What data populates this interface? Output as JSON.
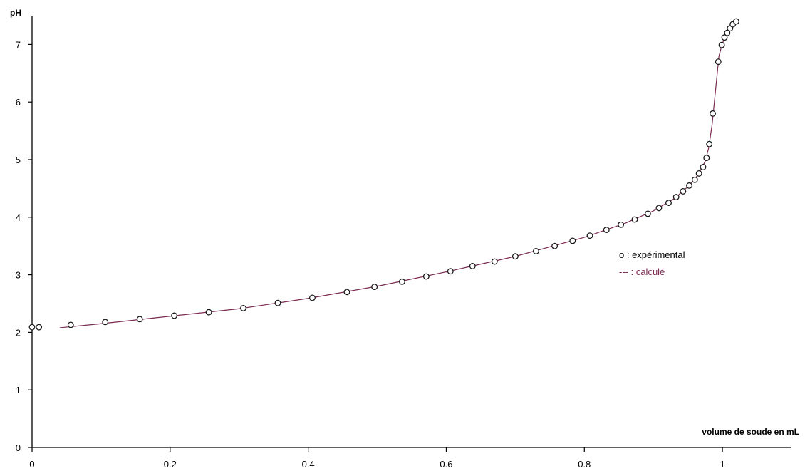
{
  "chart_data": {
    "type": "scatter",
    "xlabel": "volume de soude en mL",
    "ylabel": "pH",
    "xlim": [
      0,
      1.1
    ],
    "ylim": [
      0,
      7.5
    ],
    "x_ticks": [
      "0",
      "0.2",
      "0.4",
      "0.6",
      "0.8",
      "1"
    ],
    "y_ticks": [
      "0",
      "1",
      "2",
      "3",
      "4",
      "5",
      "6",
      "7"
    ],
    "grid": false,
    "legend_position": "right",
    "series": [
      {
        "name": "expérimental",
        "legend_text": "o : expérimental",
        "style": "open-circle",
        "color": "#1a1a1a",
        "points": [
          [
            0.0,
            2.09
          ],
          [
            0.01,
            2.09
          ],
          [
            0.056,
            2.13
          ],
          [
            0.106,
            2.18
          ],
          [
            0.156,
            2.23
          ],
          [
            0.206,
            2.29
          ],
          [
            0.256,
            2.35
          ],
          [
            0.306,
            2.42
          ],
          [
            0.356,
            2.51
          ],
          [
            0.406,
            2.6
          ],
          [
            0.456,
            2.7
          ],
          [
            0.496,
            2.79
          ],
          [
            0.536,
            2.88
          ],
          [
            0.571,
            2.97
          ],
          [
            0.606,
            3.06
          ],
          [
            0.638,
            3.15
          ],
          [
            0.67,
            3.23
          ],
          [
            0.7,
            3.32
          ],
          [
            0.73,
            3.41
          ],
          [
            0.757,
            3.5
          ],
          [
            0.783,
            3.59
          ],
          [
            0.808,
            3.68
          ],
          [
            0.832,
            3.78
          ],
          [
            0.853,
            3.87
          ],
          [
            0.873,
            3.96
          ],
          [
            0.892,
            4.06
          ],
          [
            0.908,
            4.16
          ],
          [
            0.922,
            4.25
          ],
          [
            0.933,
            4.35
          ],
          [
            0.943,
            4.45
          ],
          [
            0.952,
            4.55
          ],
          [
            0.96,
            4.65
          ],
          [
            0.966,
            4.76
          ],
          [
            0.972,
            4.87
          ],
          [
            0.977,
            5.03
          ],
          [
            0.981,
            5.27
          ],
          [
            0.986,
            5.8
          ],
          [
            0.994,
            6.7
          ],
          [
            0.999,
            6.99
          ],
          [
            1.003,
            7.12
          ],
          [
            1.007,
            7.2
          ],
          [
            1.011,
            7.28
          ],
          [
            1.015,
            7.35
          ],
          [
            1.02,
            7.4
          ]
        ]
      },
      {
        "name": "calculé",
        "legend_text": "--- : calculé",
        "style": "line",
        "color": "#7a2a52",
        "points": [
          [
            0.04,
            2.08
          ],
          [
            0.1,
            2.15
          ],
          [
            0.2,
            2.28
          ],
          [
            0.3,
            2.41
          ],
          [
            0.4,
            2.59
          ],
          [
            0.5,
            2.8
          ],
          [
            0.6,
            3.05
          ],
          [
            0.7,
            3.32
          ],
          [
            0.8,
            3.65
          ],
          [
            0.86,
            3.9
          ],
          [
            0.9,
            4.11
          ],
          [
            0.93,
            4.32
          ],
          [
            0.95,
            4.53
          ],
          [
            0.965,
            4.74
          ],
          [
            0.975,
            4.97
          ],
          [
            0.98,
            5.2
          ],
          [
            0.985,
            5.6
          ],
          [
            0.99,
            6.2
          ],
          [
            0.995,
            6.8
          ],
          [
            1.0,
            7.02
          ],
          [
            1.006,
            7.18
          ],
          [
            1.012,
            7.29
          ],
          [
            1.02,
            7.4
          ]
        ]
      }
    ]
  }
}
